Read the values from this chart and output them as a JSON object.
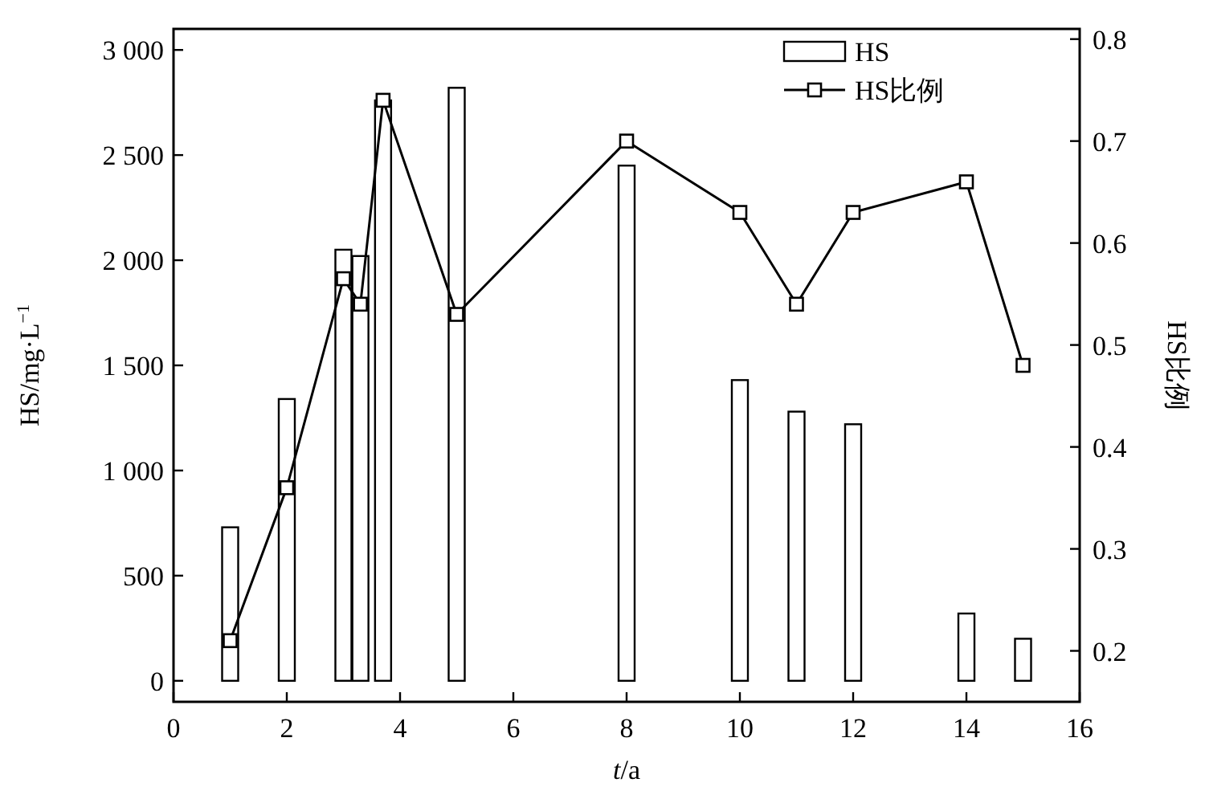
{
  "chart_data": {
    "type": "bar",
    "xlabel": "*t*/a",
    "ylabel": "HS/mg·L$^{−1}$",
    "y2label": "HS比例",
    "x": [
      1,
      2,
      3,
      3.3,
      3.7,
      5,
      8,
      10,
      11,
      12,
      14,
      15
    ],
    "xlim": [
      0,
      16
    ],
    "xticks": [
      0,
      2,
      4,
      6,
      8,
      10,
      12,
      14,
      16
    ],
    "ylim": [
      -100,
      3100
    ],
    "yticks": [
      0,
      500,
      {
        "value": 1000,
        "label": "1 000"
      },
      {
        "value": 1500,
        "label": "1 500"
      },
      {
        "value": 2000,
        "label": "2 000"
      },
      {
        "value": 2500,
        "label": "2 500"
      },
      {
        "value": 3000,
        "label": "3 000"
      }
    ],
    "y2lim": [
      0.15,
      0.81
    ],
    "y2ticks": [
      0.2,
      0.3,
      0.4,
      0.5,
      0.6,
      0.7,
      0.8
    ],
    "series": [
      {
        "name": "HS",
        "color": "#ffffff",
        "values": [
          730,
          1340,
          2050,
          2020,
          2760,
          2820,
          2450,
          1430,
          1280,
          1220,
          320,
          200
        ]
      },
      {
        "name": "HS比例",
        "type": "line",
        "axis": "y2",
        "color": "#000000",
        "values": [
          0.21,
          0.36,
          0.565,
          0.54,
          0.74,
          0.53,
          0.7,
          0.63,
          0.54,
          0.63,
          0.66,
          0.48
        ]
      }
    ],
    "marker": "square",
    "legend": "top right",
    "grid": false
  }
}
